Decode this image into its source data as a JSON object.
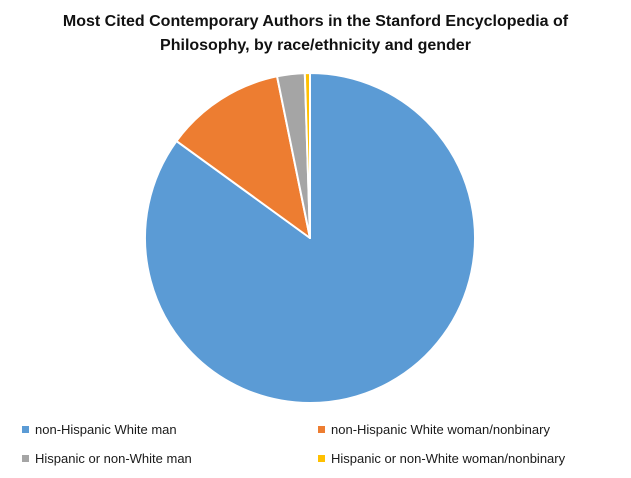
{
  "chart_data": {
    "type": "pie",
    "title_lines": [
      "Most Cited Contemporary Authors in the Stanford Encyclopedia of",
      "Philosophy, by race/ethnicity and gender"
    ],
    "categories": [
      "non-Hispanic White man",
      "non-Hispanic White woman/nonbinary",
      "Hispanic or non-White man",
      "Hispanic or non-White woman/nonbinary"
    ],
    "values": [
      85,
      11.8,
      2.7,
      0.5
    ],
    "colors": [
      "#5B9BD5",
      "#ED7D31",
      "#A5A5A5",
      "#FFC000"
    ],
    "legend_position": "bottom"
  }
}
